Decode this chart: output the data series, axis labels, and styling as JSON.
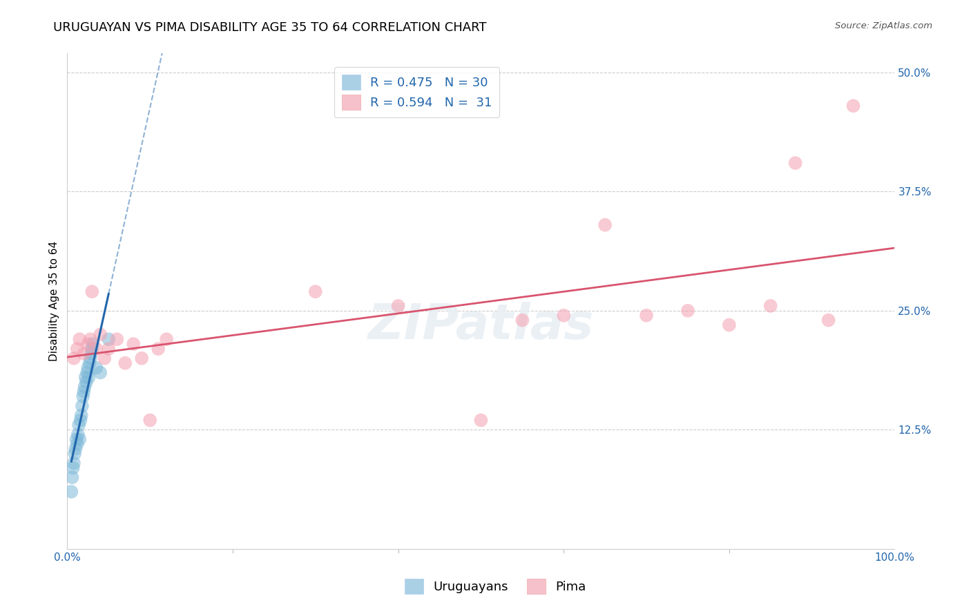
{
  "title": "URUGUAYAN VS PIMA DISABILITY AGE 35 TO 64 CORRELATION CHART",
  "source": "Source: ZipAtlas.com",
  "ylabel": "Disability Age 35 to 64",
  "xlim": [
    0.0,
    100.0
  ],
  "ylim": [
    0.0,
    52.0
  ],
  "yticks": [
    12.5,
    25.0,
    37.5,
    50.0
  ],
  "xticks": [
    0.0,
    100.0
  ],
  "uruguayan_x": [
    0.5,
    0.6,
    0.7,
    0.8,
    0.9,
    1.0,
    1.1,
    1.2,
    1.3,
    1.4,
    1.5,
    1.6,
    1.7,
    1.8,
    1.9,
    2.0,
    2.1,
    2.2,
    2.3,
    2.4,
    2.5,
    2.6,
    2.7,
    2.8,
    2.9,
    3.0,
    3.1,
    3.5,
    4.0,
    5.0
  ],
  "uruguayan_y": [
    6.0,
    7.5,
    8.5,
    9.0,
    10.0,
    10.5,
    11.5,
    11.0,
    12.0,
    13.0,
    11.5,
    13.5,
    14.0,
    15.0,
    16.0,
    16.5,
    17.0,
    18.0,
    17.5,
    18.5,
    19.0,
    18.0,
    19.5,
    20.0,
    20.5,
    21.0,
    21.5,
    19.0,
    18.5,
    22.0
  ],
  "pima_x": [
    0.8,
    1.2,
    1.5,
    2.0,
    2.5,
    2.8,
    3.0,
    3.5,
    4.0,
    4.5,
    5.0,
    6.0,
    7.0,
    8.0,
    9.0,
    10.0,
    11.0,
    12.0,
    30.0,
    40.0,
    50.0,
    55.0,
    60.0,
    65.0,
    70.0,
    75.0,
    80.0,
    85.0,
    88.0,
    92.0,
    95.0
  ],
  "pima_y": [
    20.0,
    21.0,
    22.0,
    20.5,
    21.5,
    22.0,
    27.0,
    21.0,
    22.5,
    20.0,
    21.0,
    22.0,
    19.5,
    21.5,
    20.0,
    13.5,
    21.0,
    22.0,
    27.0,
    25.5,
    13.5,
    24.0,
    24.5,
    34.0,
    24.5,
    25.0,
    23.5,
    25.5,
    40.5,
    24.0,
    46.5
  ],
  "uruguayan_color": "#7db8d8",
  "pima_color": "#f4a0b0",
  "uruguayan_line_color": "#2166ac",
  "pima_line_color": "#d9546e",
  "R_uruguayan": 0.475,
  "N_uruguayan": 30,
  "R_pima": 0.594,
  "N_pima": 31,
  "legend_label_uruguayan": "Uruguayans",
  "legend_label_pima": "Pima",
  "title_fontsize": 13,
  "axis_label_fontsize": 11,
  "tick_fontsize": 11,
  "legend_fontsize": 13,
  "background_color": "#ffffff",
  "grid_color": "#cccccc",
  "watermark": "ZIPatlas"
}
